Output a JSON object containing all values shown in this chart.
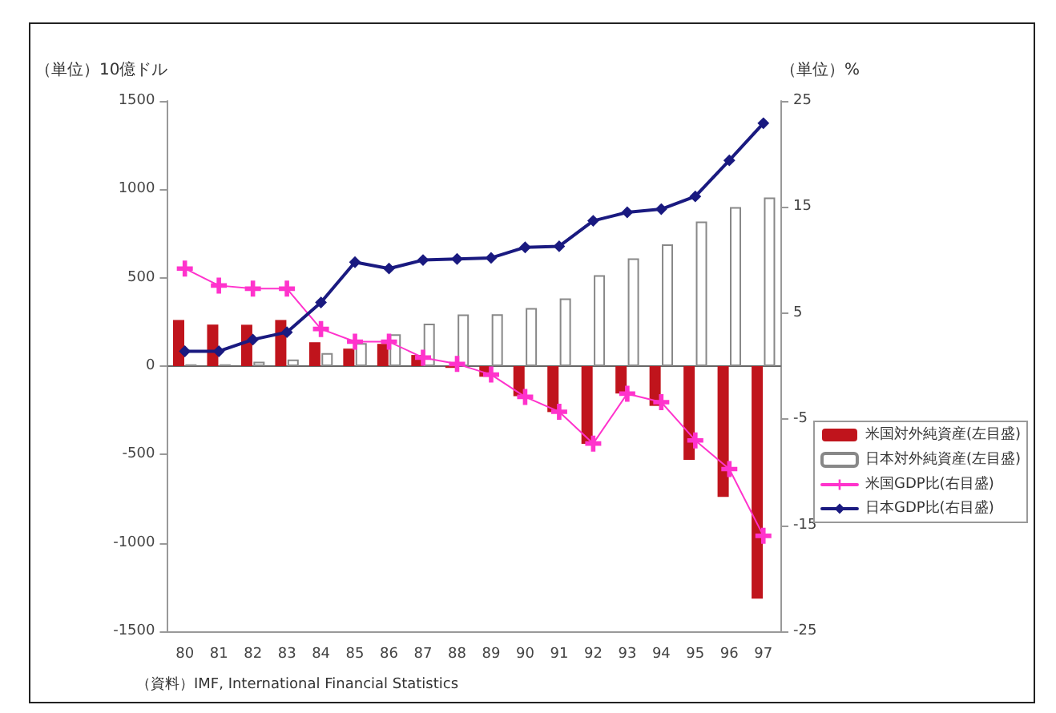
{
  "chart_data": {
    "type": "bar",
    "ylabel": "（単位）10億ドル",
    "y2label": "（単位）%",
    "categories": [
      "80",
      "81",
      "82",
      "83",
      "84",
      "85",
      "86",
      "87",
      "88",
      "89",
      "90",
      "91",
      "92",
      "93",
      "94",
      "95",
      "96",
      "97"
    ],
    "series": [
      {
        "name": "米国対外純資産(左目盛)",
        "color": "#c0141c",
        "values": [
          261,
          235,
          234,
          261,
          135,
          99,
          126,
          63,
          -10,
          -60,
          -170,
          -260,
          -440,
          -155,
          -225,
          -530,
          -740,
          -1315
        ]
      },
      {
        "name": "日本対外純資産(左目盛)",
        "color": "#ffffff",
        "values": [
          10,
          10,
          25,
          37,
          74,
          130,
          180,
          240,
          292,
          293,
          328,
          383,
          514,
          610,
          689,
          818,
          900,
          954
        ]
      },
      {
        "name": "米国GDP比(右目盛)",
        "type": "line",
        "axis": "y2",
        "color": "#ff33cc",
        "marker": "cross",
        "values": [
          9.2,
          7.6,
          7.3,
          7.3,
          3.5,
          2.3,
          2.3,
          0.8,
          0.2,
          -0.8,
          -2.9,
          -4.3,
          -7.3,
          -2.6,
          -3.4,
          -7.0,
          -9.7,
          -16.0
        ]
      },
      {
        "name": "日本GDP比(右目盛)",
        "type": "line",
        "axis": "y2",
        "color": "#1a1a80",
        "marker": "diamond",
        "values": [
          1.4,
          1.4,
          2.5,
          3.2,
          6.0,
          9.8,
          9.2,
          10.0,
          10.1,
          10.2,
          11.2,
          11.3,
          13.7,
          14.5,
          14.8,
          16.0,
          19.4,
          22.9
        ]
      }
    ],
    "ylim": [
      -1500,
      1500
    ],
    "yticks": [
      -1500,
      -1000,
      -500,
      0,
      500,
      1000,
      1500
    ],
    "y2lim": [
      -25,
      25
    ],
    "y2ticks": [
      -25,
      -15,
      -5,
      5,
      15,
      25
    ],
    "legend": "right",
    "annotations": [
      "（資料）IMF, International Financial Statistics"
    ]
  }
}
